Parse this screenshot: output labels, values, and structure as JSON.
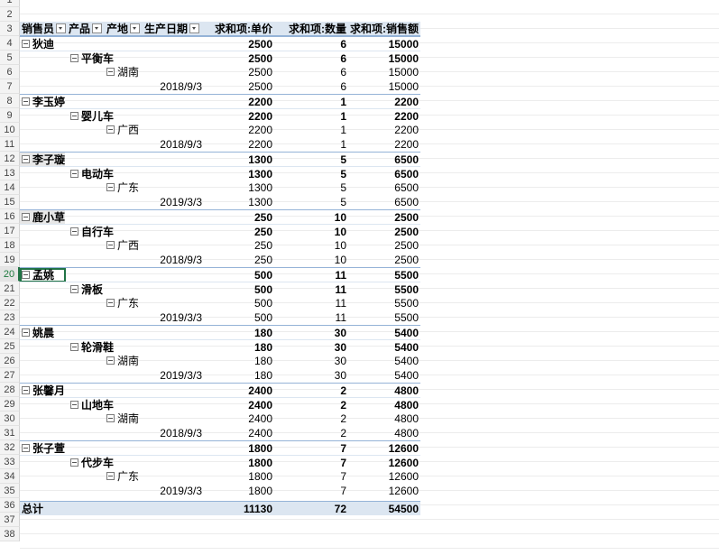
{
  "rows": [
    "1",
    "2",
    "3",
    "4",
    "5",
    "6",
    "7",
    "8",
    "9",
    "10",
    "11",
    "12",
    "13",
    "14",
    "15",
    "16",
    "17",
    "18",
    "19",
    "20",
    "21",
    "22",
    "23",
    "24",
    "25",
    "26",
    "27",
    "28",
    "29",
    "30",
    "31",
    "32",
    "33",
    "34",
    "35",
    "36",
    "37",
    "38"
  ],
  "header": {
    "seller": "销售员",
    "product": "产品",
    "origin": "产地",
    "date": "生产日期",
    "price": "求和项:单价",
    "qty": "求和项:数量",
    "amount": "求和项:销售额"
  },
  "records": [
    {
      "type": "seller",
      "label": "狄迪",
      "price": "2500",
      "qty": "6",
      "amount": "15000"
    },
    {
      "type": "product",
      "label": "平衡车",
      "price": "2500",
      "qty": "6",
      "amount": "15000"
    },
    {
      "type": "origin",
      "label": "湖南",
      "price": "2500",
      "qty": "6",
      "amount": "15000"
    },
    {
      "type": "date",
      "label": "2018/9/3",
      "price": "2500",
      "qty": "6",
      "amount": "15000"
    },
    {
      "type": "seller",
      "label": "李玉婷",
      "price": "2200",
      "qty": "1",
      "amount": "2200"
    },
    {
      "type": "product",
      "label": "婴儿车",
      "price": "2200",
      "qty": "1",
      "amount": "2200"
    },
    {
      "type": "origin",
      "label": "广西",
      "price": "2200",
      "qty": "1",
      "amount": "2200"
    },
    {
      "type": "date",
      "label": "2018/9/3",
      "price": "2200",
      "qty": "1",
      "amount": "2200"
    },
    {
      "type": "seller",
      "label": "李子璇",
      "price": "1300",
      "qty": "5",
      "amount": "6500",
      "shaded": true
    },
    {
      "type": "product",
      "label": "电动车",
      "price": "1300",
      "qty": "5",
      "amount": "6500"
    },
    {
      "type": "origin",
      "label": "广东",
      "price": "1300",
      "qty": "5",
      "amount": "6500"
    },
    {
      "type": "date",
      "label": "2019/3/3",
      "price": "1300",
      "qty": "5",
      "amount": "6500"
    },
    {
      "type": "seller",
      "label": "鹿小草",
      "price": "250",
      "qty": "10",
      "amount": "2500",
      "shaded": true
    },
    {
      "type": "product",
      "label": "自行车",
      "price": "250",
      "qty": "10",
      "amount": "2500"
    },
    {
      "type": "origin",
      "label": "广西",
      "price": "250",
      "qty": "10",
      "amount": "2500"
    },
    {
      "type": "date",
      "label": "2018/9/3",
      "price": "250",
      "qty": "10",
      "amount": "2500"
    },
    {
      "type": "seller",
      "label": "孟姚",
      "price": "500",
      "qty": "11",
      "amount": "5500",
      "active": true
    },
    {
      "type": "product",
      "label": "滑板",
      "price": "500",
      "qty": "11",
      "amount": "5500"
    },
    {
      "type": "origin",
      "label": "广东",
      "price": "500",
      "qty": "11",
      "amount": "5500"
    },
    {
      "type": "date",
      "label": "2019/3/3",
      "price": "500",
      "qty": "11",
      "amount": "5500"
    },
    {
      "type": "seller",
      "label": "姚晨",
      "price": "180",
      "qty": "30",
      "amount": "5400"
    },
    {
      "type": "product",
      "label": "轮滑鞋",
      "price": "180",
      "qty": "30",
      "amount": "5400"
    },
    {
      "type": "origin",
      "label": "湖南",
      "price": "180",
      "qty": "30",
      "amount": "5400"
    },
    {
      "type": "date",
      "label": "2019/3/3",
      "price": "180",
      "qty": "30",
      "amount": "5400"
    },
    {
      "type": "seller",
      "label": "张馨月",
      "price": "2400",
      "qty": "2",
      "amount": "4800"
    },
    {
      "type": "product",
      "label": "山地车",
      "price": "2400",
      "qty": "2",
      "amount": "4800"
    },
    {
      "type": "origin",
      "label": "湖南",
      "price": "2400",
      "qty": "2",
      "amount": "4800"
    },
    {
      "type": "date",
      "label": "2018/9/3",
      "price": "2400",
      "qty": "2",
      "amount": "4800"
    },
    {
      "type": "seller",
      "label": "张子萱",
      "price": "1800",
      "qty": "7",
      "amount": "12600"
    },
    {
      "type": "product",
      "label": "代步车",
      "price": "1800",
      "qty": "7",
      "amount": "12600"
    },
    {
      "type": "origin",
      "label": "广东",
      "price": "1800",
      "qty": "7",
      "amount": "12600"
    },
    {
      "type": "date",
      "label": "2019/3/3",
      "price": "1800",
      "qty": "7",
      "amount": "12600"
    }
  ],
  "total": {
    "label": "总计",
    "price": "11130",
    "qty": "72",
    "amount": "54500"
  }
}
